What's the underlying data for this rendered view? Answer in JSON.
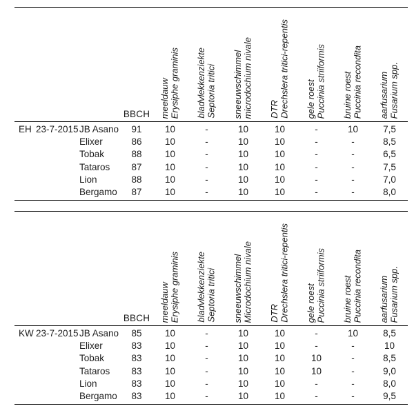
{
  "colors": {
    "background": "#ffffff",
    "text": "#1c1c1c",
    "rule": "#000000"
  },
  "tables": [
    {
      "section": "EH",
      "date": "23-7-2015",
      "bbch_label": "BBCH",
      "disease_columns": [
        "meeldauw\nErysiphe graminis",
        "bladvlekkenziekte\nSeptoria tritici",
        "sneeuwschimmel\nmicrodochium nivale",
        "DTR\nDrechslera tritici-repentis",
        "gele roest\nPuccinia striiformis",
        "bruine roest\nPuccinia recondita",
        "aarfusarium\nFusarium spp."
      ],
      "rows": [
        {
          "variety": "JB Asano",
          "bbch": "91",
          "values": [
            "10",
            "-",
            "10",
            "10",
            "-",
            "10",
            "7,5"
          ]
        },
        {
          "variety": "Elixer",
          "bbch": "86",
          "values": [
            "10",
            "-",
            "10",
            "10",
            "-",
            "-",
            "8,5"
          ]
        },
        {
          "variety": "Tobak",
          "bbch": "88",
          "values": [
            "10",
            "-",
            "10",
            "10",
            "-",
            "-",
            "6,5"
          ]
        },
        {
          "variety": "Tataros",
          "bbch": "87",
          "values": [
            "10",
            "-",
            "10",
            "10",
            "-",
            "-",
            "7,5"
          ]
        },
        {
          "variety": "Lion",
          "bbch": "88",
          "values": [
            "10",
            "-",
            "10",
            "10",
            "-",
            "-",
            "7,0"
          ]
        },
        {
          "variety": "Bergamo",
          "bbch": "87",
          "values": [
            "10",
            "-",
            "10",
            "10",
            "-",
            "-",
            "8,0"
          ]
        }
      ]
    },
    {
      "section": "KW",
      "date": "23-7-2015",
      "bbch_label": "BBCH",
      "disease_columns": [
        "meeldauw\nErysiphe graminis",
        "bladvlekkenziekte\nSeptoria tritici",
        "sneeuwschimmel\nMicrodochium nivale",
        "DTR\nDrechslera tritici-repentis",
        "gele roest\nPuccinia striiformis",
        "bruine roest\nPuccinia recondita",
        "aarfusarium\nFusarium spp."
      ],
      "rows": [
        {
          "variety": "JB Asano",
          "bbch": "85",
          "values": [
            "10",
            "-",
            "10",
            "10",
            "-",
            "10",
            "8,5"
          ]
        },
        {
          "variety": "Elixer",
          "bbch": "83",
          "values": [
            "10",
            "-",
            "10",
            "10",
            "-",
            "-",
            "10"
          ]
        },
        {
          "variety": "Tobak",
          "bbch": "83",
          "values": [
            "10",
            "-",
            "10",
            "10",
            "10",
            "-",
            "8,5"
          ]
        },
        {
          "variety": "Tataros",
          "bbch": "83",
          "values": [
            "10",
            "-",
            "10",
            "10",
            "10",
            "-",
            "9,0"
          ]
        },
        {
          "variety": "Lion",
          "bbch": "83",
          "values": [
            "10",
            "-",
            "10",
            "10",
            "-",
            "-",
            "8,0"
          ]
        },
        {
          "variety": "Bergamo",
          "bbch": "83",
          "values": [
            "10",
            "-",
            "10",
            "10",
            "-",
            "-",
            "9,5"
          ]
        }
      ]
    }
  ]
}
